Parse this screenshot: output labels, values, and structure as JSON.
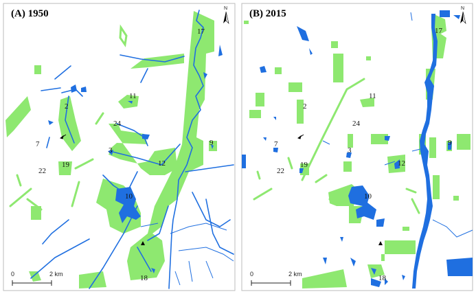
{
  "panels": [
    {
      "title": "(A) 1950",
      "north": "N",
      "scale_start": "0",
      "scale_end": "2 km",
      "labels": {
        "l17": "17",
        "l11": "11",
        "l2": "2",
        "l24": "24",
        "l9": "9",
        "l7": "7",
        "l3": "3",
        "l12": "12",
        "l19": "19",
        "l22": "22",
        "l10": "10",
        "l18": "18"
      }
    },
    {
      "title": "(B) 2015",
      "north": "N",
      "scale_start": "0",
      "scale_end": "2 km",
      "labels": {
        "l17": "17",
        "l11": "11",
        "l2": "2",
        "l24": "24",
        "l9": "9",
        "l7": "7",
        "l3": "3",
        "l12": "12",
        "l19": "19",
        "l22": "22",
        "l10": "10",
        "l18": "18"
      }
    }
  ],
  "colors": {
    "vegetation": "#8ee870",
    "water": "#1f6fe0"
  }
}
